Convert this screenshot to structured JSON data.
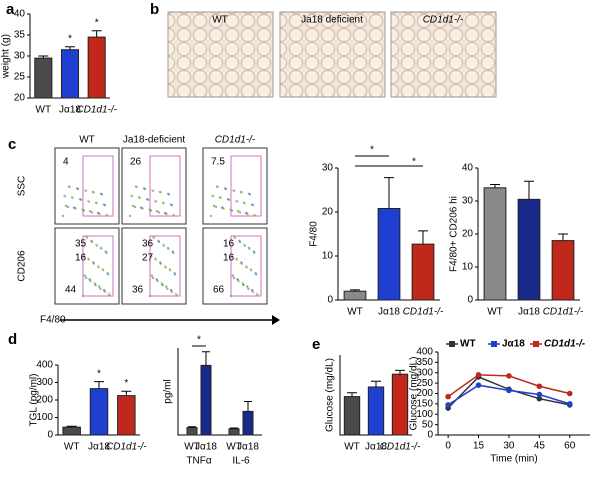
{
  "panel_labels": [
    "a",
    "b",
    "c",
    "d",
    "e"
  ],
  "histology": {
    "titles": [
      "WT",
      "Ja18 deficient",
      "CD1d1-/-"
    ]
  },
  "flow": {
    "columns": [
      "WT",
      "Ja18-deficient",
      "CD1d1-/-"
    ],
    "rows": [
      "SSC",
      "CD206"
    ],
    "gates": [
      [
        "4",
        "26",
        "7.5"
      ],
      [
        [
          "35",
          "16",
          "44"
        ],
        [
          "36",
          "27",
          "36"
        ],
        [
          "16",
          "16",
          "66"
        ]
      ]
    ],
    "x_label": "F4/80"
  },
  "chart_data": [
    {
      "type": "bar",
      "ylabel": "weight (g)",
      "categories": [
        "WT",
        "Jα18",
        "CD1d1-/-"
      ],
      "values": [
        29.5,
        31.5,
        34.5
      ],
      "errors": [
        0.5,
        0.7,
        1.5
      ],
      "colors": [
        "#4a4a4a",
        "#1f3fd0",
        "#c0281c"
      ],
      "ylim": [
        20,
        40
      ],
      "yticks": [
        20,
        25,
        30,
        35,
        40
      ],
      "annotations": [
        "*",
        "*"
      ]
    },
    {
      "type": "bar",
      "ylabel": "F4/80",
      "categories": [
        "WT",
        "Jα18",
        "CD1d1-/-"
      ],
      "values": [
        2,
        20.8,
        12.7
      ],
      "errors": [
        0.3,
        7,
        3
      ],
      "colors": [
        "#8a8a8a",
        "#1f3fd0",
        "#c0281c"
      ],
      "ylim": [
        0,
        30
      ],
      "yticks": [
        0,
        10,
        20,
        30
      ],
      "annotations": [
        "*",
        "*"
      ]
    },
    {
      "type": "bar",
      "ylabel": "F4/80+ CD206 hi",
      "categories": [
        "WT",
        "Jα18",
        "CD1d1-/-"
      ],
      "values": [
        34,
        30.5,
        18
      ],
      "errors": [
        1,
        5.5,
        2
      ],
      "colors": [
        "#8a8a8a",
        "#1a2a8a",
        "#c0281c"
      ],
      "ylim": [
        0,
        40
      ],
      "yticks": [
        0,
        10,
        20,
        30,
        40
      ]
    },
    {
      "type": "bar",
      "ylabel": "TGL (pg/ml)",
      "categories": [
        "WT",
        "Jα18",
        "CD1d1-/-"
      ],
      "values": [
        45,
        265,
        225
      ],
      "errors": [
        5,
        40,
        25
      ],
      "colors": [
        "#4a4a4a",
        "#1f3fd0",
        "#c0281c"
      ],
      "ylim": [
        0,
        400
      ],
      "yticks": [
        0,
        100,
        200,
        300,
        400
      ],
      "annotations": [
        "*",
        "*"
      ]
    },
    {
      "type": "grouped_bar",
      "ylabel": "pg/ml",
      "categories": [
        "TNFα",
        "IL-6"
      ],
      "ylim": [
        0,
        350
      ],
      "series": [
        {
          "name": "WT",
          "color": "#4a4a4a",
          "values": [
            30,
            25
          ],
          "errors": [
            3,
            3
          ]
        },
        {
          "name": "Jα18",
          "color": "#1a2a8a",
          "values": [
            280,
            95
          ],
          "errors": [
            55,
            40
          ]
        }
      ],
      "annotations": [
        "*"
      ]
    },
    {
      "type": "bar",
      "ylabel": "Glucose (mg/dL)",
      "categories": [
        "WT",
        "Jα18",
        "CD1d1-/-"
      ],
      "values": [
        120,
        150,
        190
      ],
      "errors": [
        12,
        18,
        12
      ],
      "colors": [
        "#4a4a4a",
        "#1f3fd0",
        "#c0281c"
      ],
      "ylim": [
        0,
        250
      ]
    },
    {
      "type": "line",
      "ylabel": "Glucose (mg/dL)",
      "xlabel": "Time (min)",
      "x": [
        0,
        15,
        30,
        45,
        60
      ],
      "xlim": [
        -5,
        70
      ],
      "xticks": [
        0,
        15,
        30,
        45,
        60
      ],
      "ylim": [
        0,
        400
      ],
      "yticks": [
        0,
        50,
        100,
        150,
        200,
        250,
        300,
        350,
        400
      ],
      "series": [
        {
          "name": "WT",
          "color": "#333333",
          "values": [
            130,
            280,
            220,
            175,
            145
          ]
        },
        {
          "name": "Jα18",
          "color": "#1f3fd0",
          "values": [
            145,
            240,
            215,
            195,
            150
          ]
        },
        {
          "name": "CD1d1-/-",
          "color": "#c0281c",
          "values": [
            185,
            290,
            285,
            235,
            200
          ]
        }
      ]
    }
  ]
}
